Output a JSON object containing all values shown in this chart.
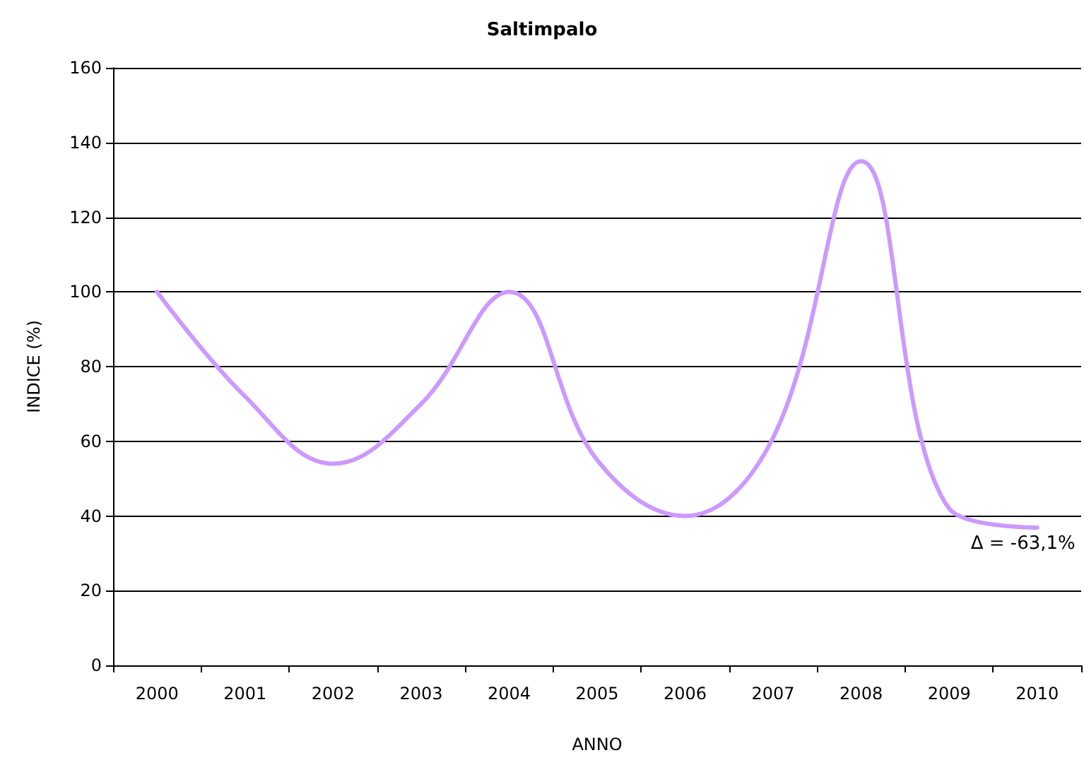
{
  "chart_data": {
    "type": "line",
    "title": "Saltimpalo",
    "xlabel": "ANNO",
    "ylabel": "INDICE (%)",
    "categories": [
      "2000",
      "2001",
      "2002",
      "2003",
      "2004",
      "2005",
      "2006",
      "2007",
      "2008",
      "2009",
      "2010"
    ],
    "series": [
      {
        "color": "#cc99ff",
        "values": [
          100,
          72,
          54,
          70,
          100,
          55,
          40,
          61,
          135,
          42,
          36.9
        ]
      }
    ],
    "ylim": [
      0,
      160
    ],
    "yticks": [
      0,
      20,
      40,
      60,
      80,
      100,
      120,
      140,
      160
    ],
    "grid": "y",
    "marker": "none",
    "line_style": "solid",
    "annotations": [
      {
        "text": "Δ = -63,1%",
        "x": "2010",
        "y": 36.9
      }
    ]
  }
}
